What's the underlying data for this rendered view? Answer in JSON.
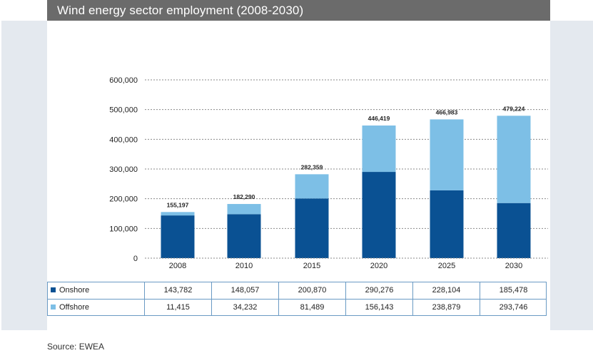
{
  "header": {
    "title": "Wind energy sector employment (2008-2030)"
  },
  "chart_data": {
    "type": "bar",
    "stacked": true,
    "categories": [
      "2008",
      "2010",
      "2015",
      "2020",
      "2025",
      "2030"
    ],
    "series": [
      {
        "name": "Onshore",
        "color": "#0a5193",
        "values": [
          143782,
          148057,
          200870,
          290276,
          228104,
          185478
        ]
      },
      {
        "name": "Offshore",
        "color": "#7dbfe6",
        "values": [
          11415,
          34232,
          81489,
          156143,
          238879,
          293746
        ]
      }
    ],
    "totals": [
      "155,197",
      "182,290",
      "282,359",
      "446,419",
      "466,983",
      "479,224"
    ],
    "ylim": [
      0,
      600000
    ],
    "yticks": [
      "0",
      "100,000",
      "200,000",
      "300,000",
      "400,000",
      "500,000",
      "600,000"
    ],
    "grid": true,
    "legend": "data-table-below"
  },
  "table": {
    "rows": [
      {
        "label": "Onshore",
        "color": "#0a5193",
        "cells": [
          "143,782",
          "148,057",
          "200,870",
          "290,276",
          "228,104",
          "185,478"
        ]
      },
      {
        "label": "Offshore",
        "color": "#7dbfe6",
        "cells": [
          "11,415",
          "34,232",
          "81,489",
          "156,143",
          "238,879",
          "293,746"
        ]
      }
    ]
  },
  "source": "Source: EWEA"
}
